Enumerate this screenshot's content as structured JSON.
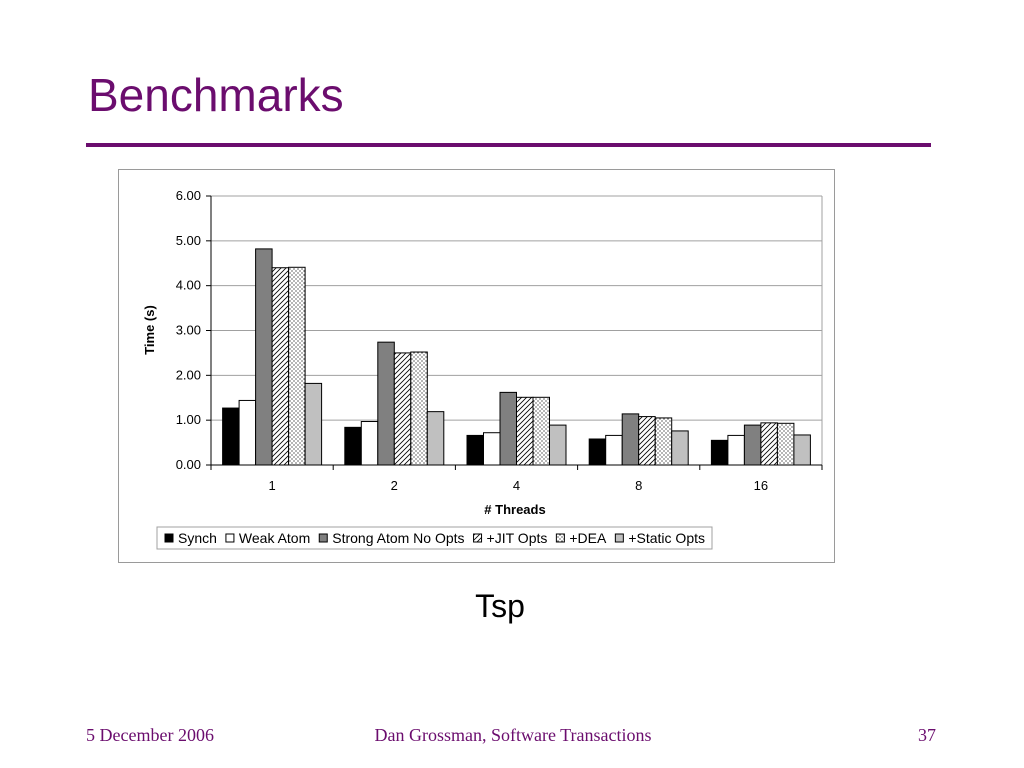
{
  "slide": {
    "title": "Benchmarks",
    "caption": "Tsp",
    "footer_date": "5 December 2006",
    "footer_center": "Dan Grossman, Software Transactions",
    "footer_page": "37",
    "accent_color": "#6b0d6e"
  },
  "chart_data": {
    "type": "bar",
    "xlabel": "# Threads",
    "ylabel": "Time (s)",
    "categories": [
      "1",
      "2",
      "4",
      "8",
      "16"
    ],
    "ylim": [
      0,
      6
    ],
    "yticks": [
      "0.00",
      "1.00",
      "2.00",
      "3.00",
      "4.00",
      "5.00",
      "6.00"
    ],
    "grid": true,
    "legend_position": "bottom",
    "series": [
      {
        "name": "Synch",
        "values": [
          1.27,
          0.84,
          0.66,
          0.58,
          0.55
        ],
        "fill": "#000000",
        "pattern": "solid"
      },
      {
        "name": "Weak Atom",
        "values": [
          1.44,
          0.97,
          0.72,
          0.66,
          0.66
        ],
        "fill": "#ffffff",
        "pattern": "solid"
      },
      {
        "name": "Strong Atom No Opts",
        "values": [
          4.82,
          2.74,
          1.62,
          1.14,
          0.89
        ],
        "fill": "#808080",
        "pattern": "solid"
      },
      {
        "name": "+JIT Opts",
        "values": [
          4.4,
          2.5,
          1.51,
          1.08,
          0.94
        ],
        "fill": "#ffffff",
        "pattern": "diagonal"
      },
      {
        "name": "+DEA",
        "values": [
          4.41,
          2.52,
          1.51,
          1.05,
          0.93
        ],
        "fill": "#ffffff",
        "pattern": "dots"
      },
      {
        "name": "+Static Opts",
        "values": [
          1.82,
          1.19,
          0.89,
          0.76,
          0.67
        ],
        "fill": "#c0c0c0",
        "pattern": "solid"
      }
    ]
  }
}
